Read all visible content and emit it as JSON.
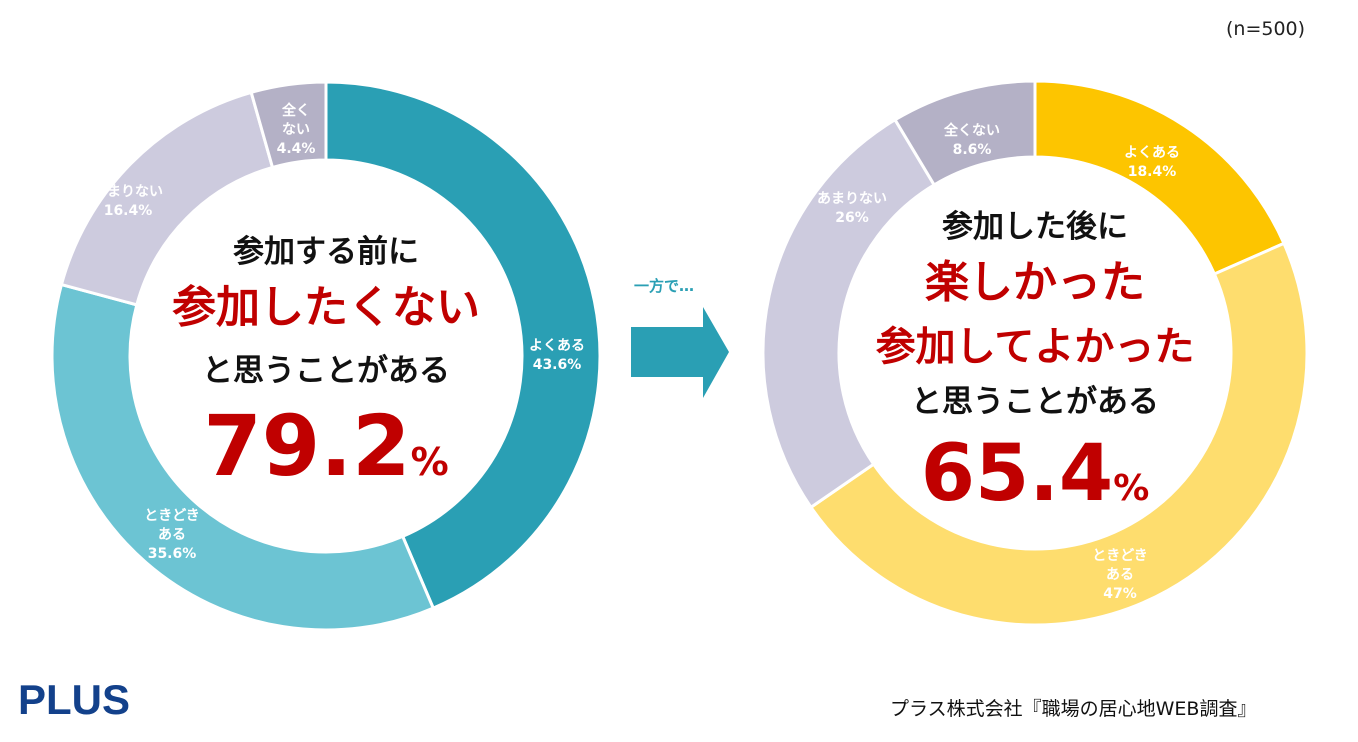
{
  "sample_size": "(n=500)",
  "arrow_label": "一方で…",
  "logo_text": "PLUS",
  "source": "プラス株式会社『職場の居心地WEB調査』",
  "colors": {
    "left": [
      "#2a9fb4",
      "#6cc4d3",
      "#cdcbde",
      "#b4b1c6"
    ],
    "right": [
      "#fdc500",
      "#fedd6e",
      "#cdcbde",
      "#b4b1c6"
    ],
    "accent_red": "#c00000",
    "arrow": "#2a9fb4",
    "logo": "#13418b"
  },
  "chart_data": [
    {
      "type": "pie",
      "title_lines": [
        "参加する前に",
        "参加したくない",
        "と思うことがある"
      ],
      "headline_value_main": "79.2",
      "headline_value_unit": "%",
      "slices": [
        {
          "label_lines": [
            "よくある"
          ],
          "value": 43.6,
          "value_text": "43.6%"
        },
        {
          "label_lines": [
            "ときどき",
            "ある"
          ],
          "value": 35.6,
          "value_text": "35.6%"
        },
        {
          "label_lines": [
            "あまりない"
          ],
          "value": 16.4,
          "value_text": "16.4%"
        },
        {
          "label_lines": [
            "全く",
            "ない"
          ],
          "value": 4.4,
          "value_text": "4.4%"
        }
      ]
    },
    {
      "type": "pie",
      "title_lines": [
        "参加した後に",
        "楽しかった",
        "参加してよかった",
        "と思うことがある"
      ],
      "headline_value_main": "65.4",
      "headline_value_unit": "%",
      "slices": [
        {
          "label_lines": [
            "よくある"
          ],
          "value": 18.4,
          "value_text": "18.4%"
        },
        {
          "label_lines": [
            "ときどき",
            "ある"
          ],
          "value": 47,
          "value_text": "47%"
        },
        {
          "label_lines": [
            "あまりない"
          ],
          "value": 26,
          "value_text": "26%"
        },
        {
          "label_lines": [
            "全くない"
          ],
          "value": 8.6,
          "value_text": "8.6%"
        }
      ]
    }
  ]
}
